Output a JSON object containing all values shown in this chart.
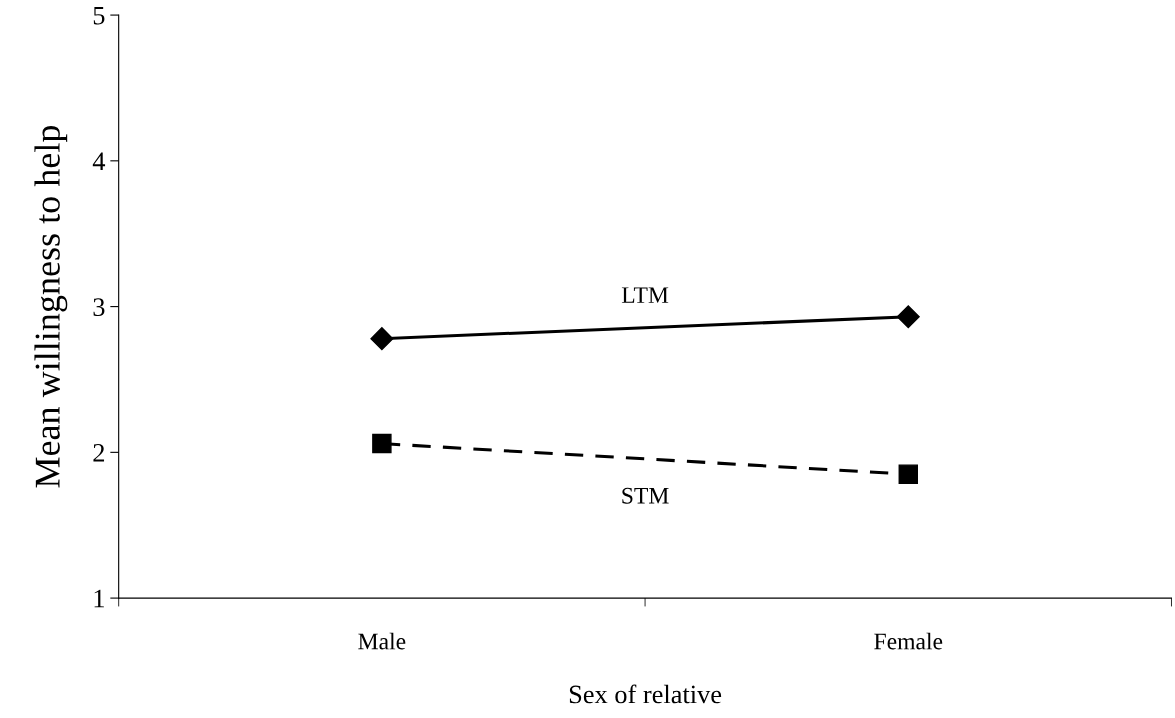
{
  "chart_data": {
    "type": "line",
    "xlabel": "Sex of relative",
    "ylabel": "Mean willingness to help",
    "categories": [
      "Male",
      "Female"
    ],
    "series": [
      {
        "name": "LTM",
        "color": "#000000",
        "values": [
          2.78,
          2.93
        ],
        "marker": "diamond",
        "line_style": "solid"
      },
      {
        "name": "STM",
        "color": "#000000",
        "values": [
          2.06,
          1.85
        ],
        "marker": "square",
        "line_style": "dashed"
      }
    ],
    "ylim": [
      1,
      5
    ],
    "yticks": [
      1,
      2,
      3,
      4,
      5
    ],
    "grid": false,
    "legend": false
  }
}
